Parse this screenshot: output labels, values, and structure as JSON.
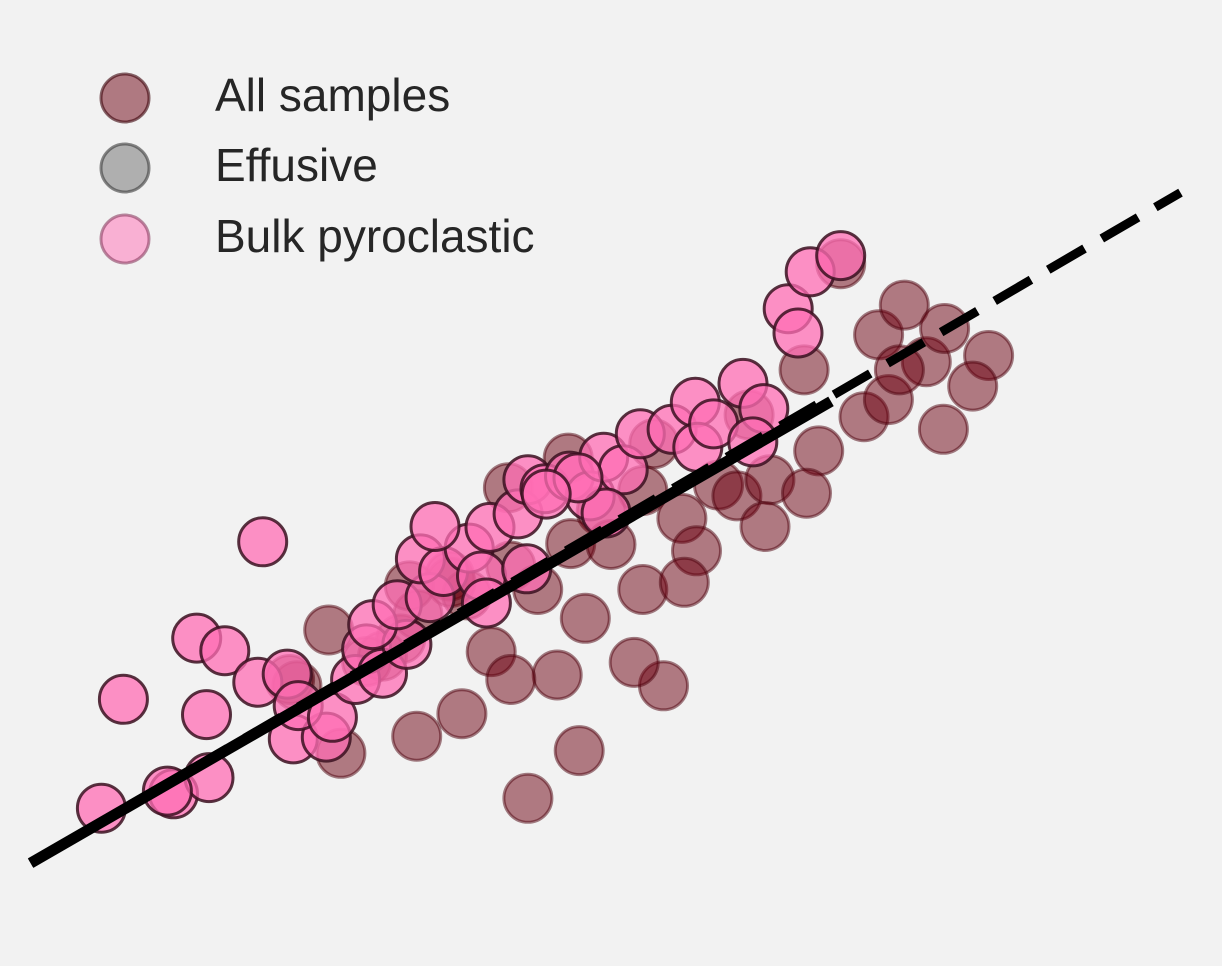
{
  "chart_data": {
    "type": "scatter",
    "title": "",
    "xlabel": "",
    "ylabel": "",
    "xlim": [
      0,
      100
    ],
    "ylim": [
      0,
      100
    ],
    "grid": false,
    "legend": {
      "placement": "top-left",
      "entries": [
        {
          "label": "All samples",
          "color": "#6b0010",
          "alpha": 0.5
        },
        {
          "label": "Effusive",
          "color": "#6b6b6b",
          "alpha": 0.5
        },
        {
          "label": "Bulk pyroclastic",
          "color": "#ff6eb4",
          "alpha": 0.5
        }
      ]
    },
    "series": [
      {
        "name": "All samples",
        "color": "#6b0010",
        "points": [
          [
            68.8,
            70.7
          ],
          [
            80.9,
            60.5
          ],
          [
            65.8,
            58.9
          ],
          [
            61.3,
            53.9
          ],
          [
            58.8,
            46.1
          ],
          [
            55.8,
            42.4
          ],
          [
            52.6,
            45.5
          ],
          [
            49.2,
            43.2
          ],
          [
            46.7,
            39.6
          ],
          [
            41.8,
            37.1
          ],
          [
            36.8,
            36.0
          ],
          [
            40.2,
            27.6
          ],
          [
            54.3,
            23.8
          ],
          [
            47.4,
            16.6
          ],
          [
            43.2,
            11.3
          ],
          [
            36.9,
            35.3
          ],
          [
            24.3,
            23.8
          ],
          [
            34.1,
            18.2
          ],
          [
            27.9,
            16.3
          ],
          [
            23.7,
            24.5
          ],
          [
            32.8,
            29.0
          ],
          [
            26.9,
            30.0
          ],
          [
            30.0,
            26.5
          ],
          [
            34.2,
            31.7
          ],
          [
            38.2,
            33.9
          ],
          [
            44.0,
            34.5
          ],
          [
            50.0,
            39.5
          ],
          [
            52.6,
            34.5
          ],
          [
            57.0,
            38.8
          ],
          [
            60.3,
            44.9
          ],
          [
            63.0,
            46.7
          ],
          [
            67.0,
            49.9
          ],
          [
            70.7,
            53.7
          ],
          [
            72.7,
            55.6
          ],
          [
            75.8,
            59.8
          ],
          [
            71.9,
            62.8
          ],
          [
            74.0,
            66.1
          ],
          [
            77.3,
            63.5
          ],
          [
            73.6,
            58.9
          ],
          [
            79.6,
            57.1
          ],
          [
            77.2,
            52.3
          ],
          [
            66.0,
            45.2
          ],
          [
            62.6,
            41.5
          ],
          [
            56.0,
            35.3
          ],
          [
            47.9,
            31.3
          ],
          [
            45.6,
            25.0
          ],
          [
            51.9,
            26.4
          ],
          [
            41.8,
            24.5
          ],
          [
            37.8,
            20.7
          ],
          [
            53.5,
            50.7
          ],
          [
            46.5,
            49.1
          ],
          [
            41.6,
            45.8
          ],
          [
            33.5,
            34.9
          ],
          [
            31.3,
            27.1
          ]
        ]
      },
      {
        "name": "Effusive",
        "color": "#6b6b6b",
        "points": []
      },
      {
        "name": "Bulk pyroclastic",
        "color": "#ff6eb4",
        "points": [
          [
            8.3,
            10.2
          ],
          [
            14.2,
            11.8
          ],
          [
            17.1,
            13.6
          ],
          [
            13.7,
            12.1
          ],
          [
            10.1,
            22.3
          ],
          [
            16.9,
            20.6
          ],
          [
            16.1,
            29.1
          ],
          [
            18.4,
            27.7
          ],
          [
            21.1,
            24.2
          ],
          [
            21.5,
            39.8
          ],
          [
            24.0,
            17.9
          ],
          [
            23.5,
            25.1
          ],
          [
            26.7,
            18.1
          ],
          [
            24.4,
            21.6
          ],
          [
            27.2,
            20.3
          ],
          [
            29.1,
            24.5
          ],
          [
            30.0,
            27.9
          ],
          [
            31.3,
            25.2
          ],
          [
            33.3,
            28.4
          ],
          [
            30.5,
            30.6
          ],
          [
            32.5,
            32.8
          ],
          [
            35.2,
            33.6
          ],
          [
            34.4,
            37.9
          ],
          [
            36.3,
            36.5
          ],
          [
            38.4,
            39.1
          ],
          [
            35.6,
            41.5
          ],
          [
            39.4,
            36.0
          ],
          [
            40.1,
            41.4
          ],
          [
            42.4,
            42.9
          ],
          [
            43.1,
            36.8
          ],
          [
            39.8,
            33.0
          ],
          [
            43.2,
            46.7
          ],
          [
            44.6,
            45.7
          ],
          [
            46.6,
            47.1
          ],
          [
            48.3,
            44.9
          ],
          [
            49.4,
            49.2
          ],
          [
            51.0,
            47.8
          ],
          [
            52.4,
            51.8
          ],
          [
            55.0,
            52.3
          ],
          [
            56.9,
            55.3
          ],
          [
            57.1,
            50.3
          ],
          [
            58.4,
            52.9
          ],
          [
            60.8,
            57.4
          ],
          [
            62.5,
            54.6
          ],
          [
            64.5,
            65.7
          ],
          [
            66.3,
            69.8
          ],
          [
            65.3,
            63.0
          ],
          [
            68.8,
            71.6
          ],
          [
            61.6,
            50.9
          ],
          [
            49.6,
            43.0
          ],
          [
            47.3,
            46.9
          ],
          [
            44.7,
            45.1
          ]
        ]
      }
    ],
    "lines": [
      {
        "style": "solid",
        "color": "#000000",
        "from": [
          2.5,
          4.1
        ],
        "to": [
          68.0,
          55.4
        ]
      },
      {
        "style": "dashed",
        "color": "#000000",
        "from": [
          2.5,
          4.1
        ],
        "to": [
          96.6,
          78.6
        ]
      }
    ]
  }
}
